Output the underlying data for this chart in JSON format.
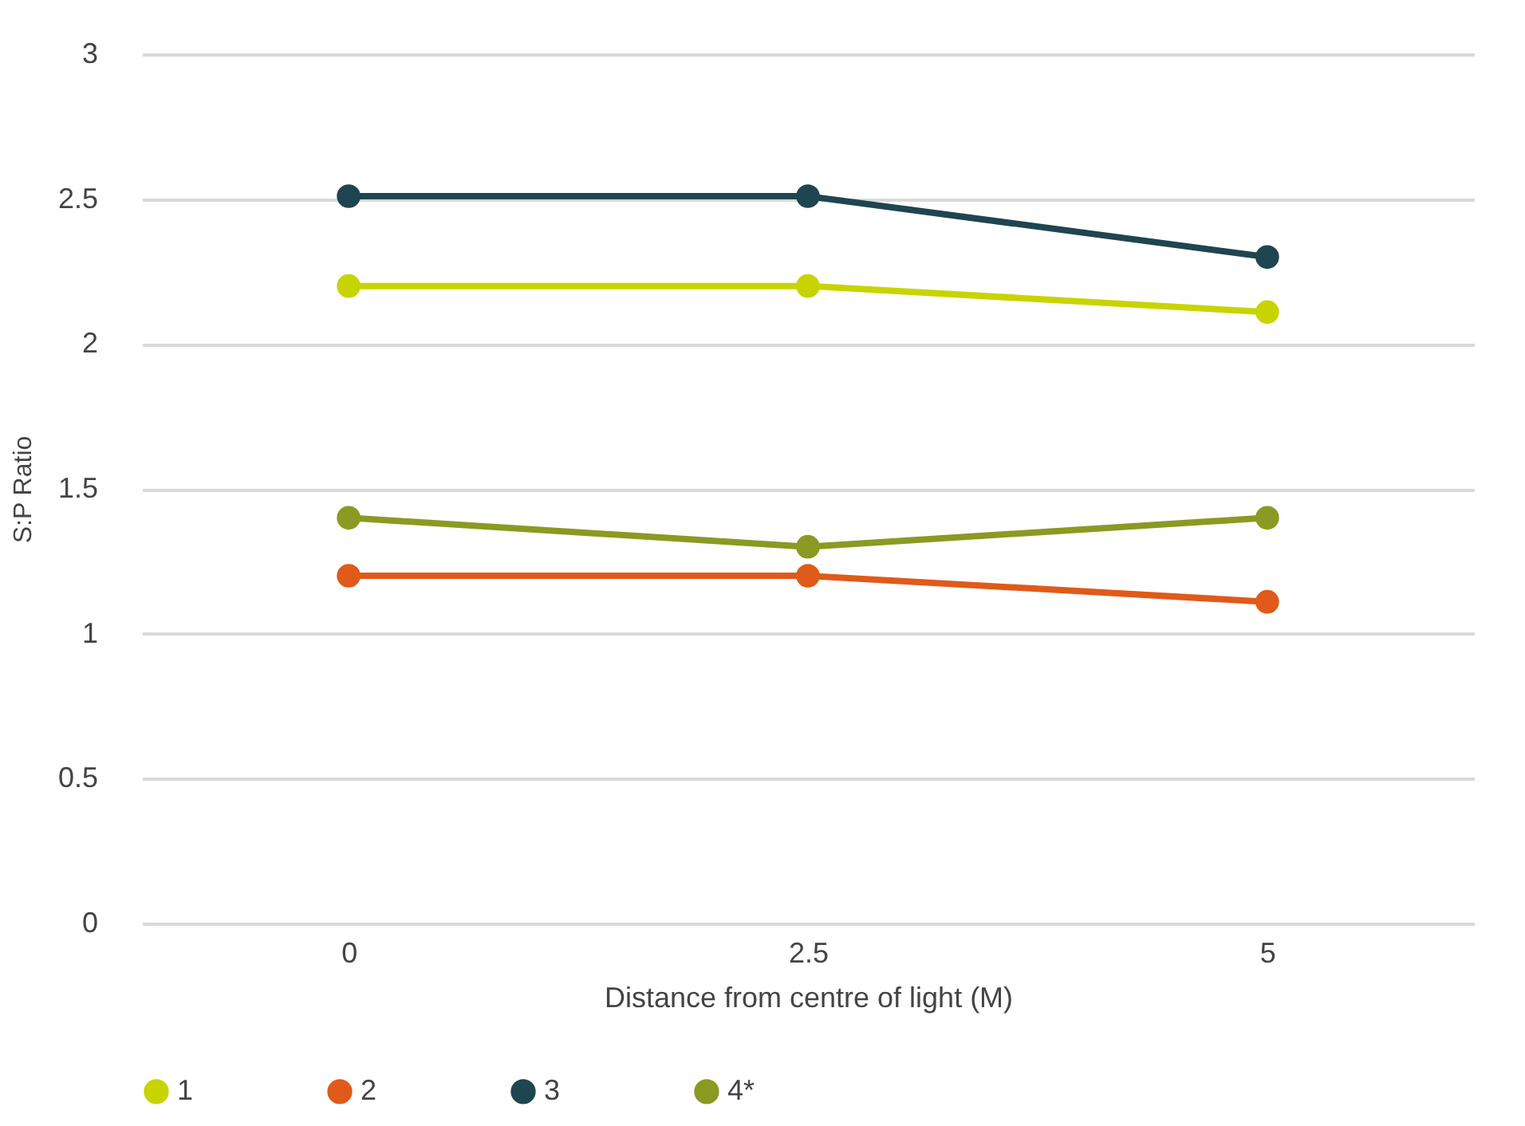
{
  "chart_data": {
    "type": "line",
    "xlabel": "Distance from centre of light (M)",
    "ylabel": "S:P Ratio",
    "categories": [
      "0",
      "2.5",
      "5"
    ],
    "series": [
      {
        "name": "1",
        "color": "#c8d400",
        "values": [
          2.2,
          2.2,
          2.11
        ]
      },
      {
        "name": "2",
        "color": "#e05a1a",
        "values": [
          1.2,
          1.2,
          1.11
        ]
      },
      {
        "name": "3",
        "color": "#1f4550",
        "values": [
          2.51,
          2.51,
          2.3
        ]
      },
      {
        "name": "4*",
        "color": "#8a9a22",
        "values": [
          1.4,
          1.3,
          1.4
        ]
      }
    ],
    "ylim": [
      0,
      3
    ],
    "yticks": [
      0,
      0.5,
      1,
      1.5,
      2,
      2.5,
      3
    ],
    "grid": "y",
    "legend": "bottom",
    "marker": "circle",
    "line_style": "solid"
  }
}
